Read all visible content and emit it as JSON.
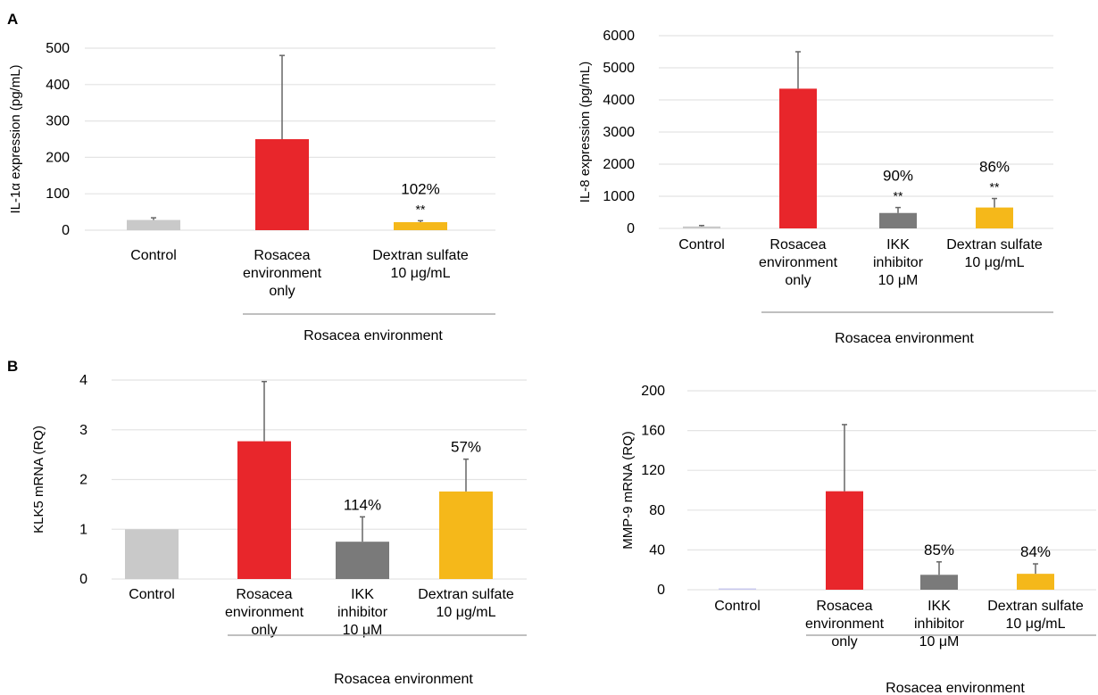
{
  "panel_labels": [
    "A",
    "B"
  ],
  "colors": {
    "control": "#c9c9c9",
    "rosacea": "#e8262b",
    "ikk": "#7a7a7a",
    "dextran": "#f5b81a",
    "mmp_control": "#c8c8ee",
    "grid": "#e4e4e4",
    "errorbar": "#666666",
    "group_line": "#aaaaaa"
  },
  "chart_data": [
    {
      "id": "il1a",
      "panel": "A",
      "type": "bar",
      "ylabel": "IL-1α expression (pg/mL)",
      "yticks": [
        0,
        100,
        200,
        300,
        400,
        500
      ],
      "ylim": [
        0,
        500
      ],
      "categories": [
        [
          "Control"
        ],
        [
          "Rosacea",
          "environment",
          "only"
        ],
        [
          "Dextran sulfate",
          "10 μg/mL"
        ]
      ],
      "values": [
        28,
        250,
        22
      ],
      "errors": [
        6,
        230,
        4
      ],
      "annotations": [
        null,
        null,
        {
          "pct": "102%",
          "sig": "**"
        }
      ],
      "colors": [
        "control",
        "rosacea",
        "dextran"
      ],
      "group_label": "Rosacea environment",
      "grid": true
    },
    {
      "id": "il8",
      "panel": "A",
      "type": "bar",
      "ylabel": "IL-8 expression (pg/mL)",
      "yticks": [
        0,
        1000,
        2000,
        3000,
        4000,
        5000,
        6000
      ],
      "ylim": [
        0,
        6000
      ],
      "categories": [
        [
          "Control"
        ],
        [
          "Rosacea",
          "environment",
          "only"
        ],
        [
          "IKK",
          "inhibitor",
          "10 μM"
        ],
        [
          "Dextran sulfate",
          "10 μg/mL"
        ]
      ],
      "values": [
        60,
        4350,
        480,
        650
      ],
      "errors": [
        30,
        1150,
        170,
        280
      ],
      "annotations": [
        null,
        null,
        {
          "pct": "90%",
          "sig": "**"
        },
        {
          "pct": "86%",
          "sig": "**"
        }
      ],
      "colors": [
        "control",
        "rosacea",
        "ikk",
        "dextran"
      ],
      "group_label": "Rosacea environment",
      "grid": true
    },
    {
      "id": "klk5",
      "panel": "B",
      "type": "bar",
      "ylabel": "KLK5 mRNA (RQ)",
      "yticks": [
        0,
        1,
        2,
        3,
        4
      ],
      "ylim": [
        0,
        4
      ],
      "categories": [
        [
          "Control"
        ],
        [
          "Rosacea",
          "environment",
          "only"
        ],
        [
          "IKK",
          "inhibitor",
          "10 μM"
        ],
        [
          "Dextran sulfate",
          "10 μg/mL"
        ]
      ],
      "values": [
        1.0,
        2.77,
        0.75,
        1.76
      ],
      "errors": [
        0,
        1.2,
        0.5,
        0.65
      ],
      "annotations": [
        null,
        null,
        {
          "pct": "114%",
          "sig": ""
        },
        {
          "pct": "57%",
          "sig": ""
        }
      ],
      "colors": [
        "control",
        "rosacea",
        "ikk",
        "dextran"
      ],
      "group_label": "Rosacea environment",
      "grid": true
    },
    {
      "id": "mmp9",
      "panel": "B",
      "type": "bar",
      "ylabel": "MMP-9 mRNA (RQ)",
      "yticks": [
        0,
        40,
        80,
        120,
        160,
        200
      ],
      "ylim": [
        0,
        200
      ],
      "categories": [
        [
          "Control"
        ],
        [
          "Rosacea",
          "environment",
          "only"
        ],
        [
          "IKK",
          "inhibitor",
          "10 μM"
        ],
        [
          "Dextran sulfate",
          "10 μg/mL"
        ]
      ],
      "values": [
        1,
        99,
        15,
        16
      ],
      "errors": [
        0,
        67,
        13,
        10
      ],
      "annotations": [
        null,
        null,
        {
          "pct": "85%",
          "sig": ""
        },
        {
          "pct": "84%",
          "sig": ""
        }
      ],
      "colors": [
        "mmp_control",
        "rosacea",
        "ikk",
        "dextran"
      ],
      "group_label": "Rosacea environment",
      "grid": true
    }
  ]
}
